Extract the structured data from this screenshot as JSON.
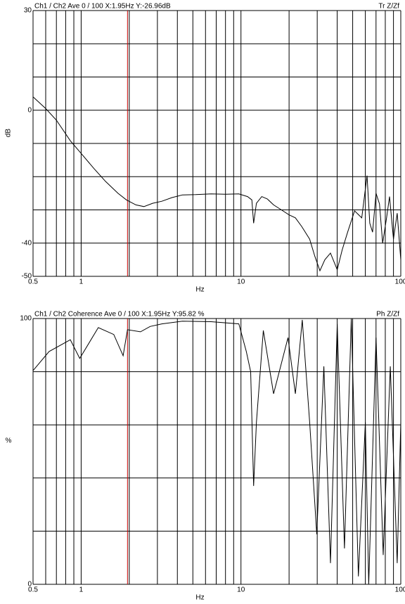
{
  "chart_data": [
    {
      "type": "line",
      "header": "Ch1 / Ch2  Ave 0 / 100  X:1.95Hz  Y:-26.96dB",
      "header_right": "Tr Z/Zf",
      "xlabel": "Hz",
      "ylabel": "dB",
      "xscale": "log",
      "xlim": [
        0.5,
        100
      ],
      "xticks": [
        0.5,
        1,
        10,
        100
      ],
      "xgrid": [
        0.5,
        0.6,
        0.7,
        0.8,
        0.9,
        1,
        2,
        3,
        4,
        5,
        6,
        7,
        8,
        9,
        10,
        20,
        30,
        40,
        50,
        60,
        70,
        80,
        90,
        100
      ],
      "ylim": [
        -50,
        30
      ],
      "yticks": [
        30,
        0,
        -40,
        -50
      ],
      "ygrid": [
        30,
        20,
        10,
        0,
        -10,
        -20,
        -30,
        -40,
        -50
      ],
      "cursor_x": 1.95,
      "cursor_color": "#c00000",
      "series": [
        {
          "color": "#000000",
          "x": [
            0.5,
            0.6,
            0.7,
            0.855,
            1.0,
            1.2,
            1.42,
            1.7,
            1.92,
            2.2,
            2.47,
            2.8,
            3.2,
            3.7,
            4.3,
            5.2,
            6.5,
            8.0,
            9.7,
            11.0,
            11.7,
            12.0,
            12.5,
            13.5,
            14.6,
            16.0,
            17.9,
            20.0,
            21.9,
            24.0,
            26.9,
            29.0,
            31.2,
            33.5,
            36.3,
            40.0,
            43.0,
            46.5,
            51.4,
            57.0,
            61.5,
            64.0,
            66.6,
            70.0,
            73.6,
            77.0,
            81.5,
            85.0,
            90.0,
            95.0,
            100.0
          ],
          "values": [
            4,
            0.5,
            -3,
            -9.2,
            -13,
            -17.5,
            -21.4,
            -25,
            -27,
            -28.5,
            -29,
            -28,
            -27.4,
            -26.3,
            -25.5,
            -25.4,
            -25.2,
            -25.3,
            -25.2,
            -26,
            -27,
            -34,
            -28,
            -26,
            -26.7,
            -28.5,
            -30,
            -31.5,
            -32.4,
            -35,
            -38.8,
            -44,
            -48.3,
            -45,
            -43,
            -48,
            -42,
            -36.7,
            -30.3,
            -32.4,
            -19.7,
            -34,
            -36.7,
            -25,
            -28.2,
            -40,
            -32.4,
            -26,
            -38.8,
            -31,
            -45
          ]
        }
      ]
    },
    {
      "type": "line",
      "header": "Ch1 / Ch2  Coherence Ave 0 / 100  X:1.95Hz  Y:95.82 %",
      "header_right": "Ph Z/Zf",
      "xlabel": "Hz",
      "ylabel": "%",
      "xscale": "log",
      "xlim": [
        0.5,
        100
      ],
      "xticks": [
        0.5,
        1,
        10,
        100
      ],
      "xgrid": [
        0.5,
        0.6,
        0.7,
        0.8,
        0.9,
        1,
        2,
        3,
        4,
        5,
        6,
        7,
        8,
        9,
        10,
        20,
        30,
        40,
        50,
        60,
        70,
        80,
        90,
        100
      ],
      "ylim": [
        0,
        100
      ],
      "yticks": [
        100,
        0
      ],
      "ygrid": [
        100,
        80,
        60,
        40,
        20,
        0
      ],
      "cursor_x": 1.95,
      "cursor_color": "#c00000",
      "series": [
        {
          "color": "#000000",
          "x": [
            0.5,
            0.63,
            0.855,
            0.98,
            1.28,
            1.6,
            1.83,
            1.95,
            2.35,
            2.7,
            3.2,
            4.3,
            6.5,
            9.7,
            10.8,
            11.5,
            12.0,
            12.5,
            13.8,
            16.0,
            19.7,
            21.9,
            24.2,
            26.9,
            29.8,
            33.0,
            36.3,
            40.0,
            44.4,
            49.0,
            54.3,
            60.0,
            63.0,
            70.0,
            77.6,
            86.0,
            95.0,
            100.0
          ],
          "values": [
            80.4,
            87.6,
            92,
            85,
            96.6,
            94,
            86,
            95.8,
            95,
            97,
            98,
            99,
            98.8,
            98,
            87.6,
            80,
            37,
            61,
            95.5,
            71.7,
            92.8,
            71.7,
            99.5,
            61,
            18.8,
            82,
            8,
            98,
            13.5,
            100,
            3,
            61,
            0,
            92.8,
            11,
            82,
            8,
            61
          ]
        }
      ]
    }
  ]
}
